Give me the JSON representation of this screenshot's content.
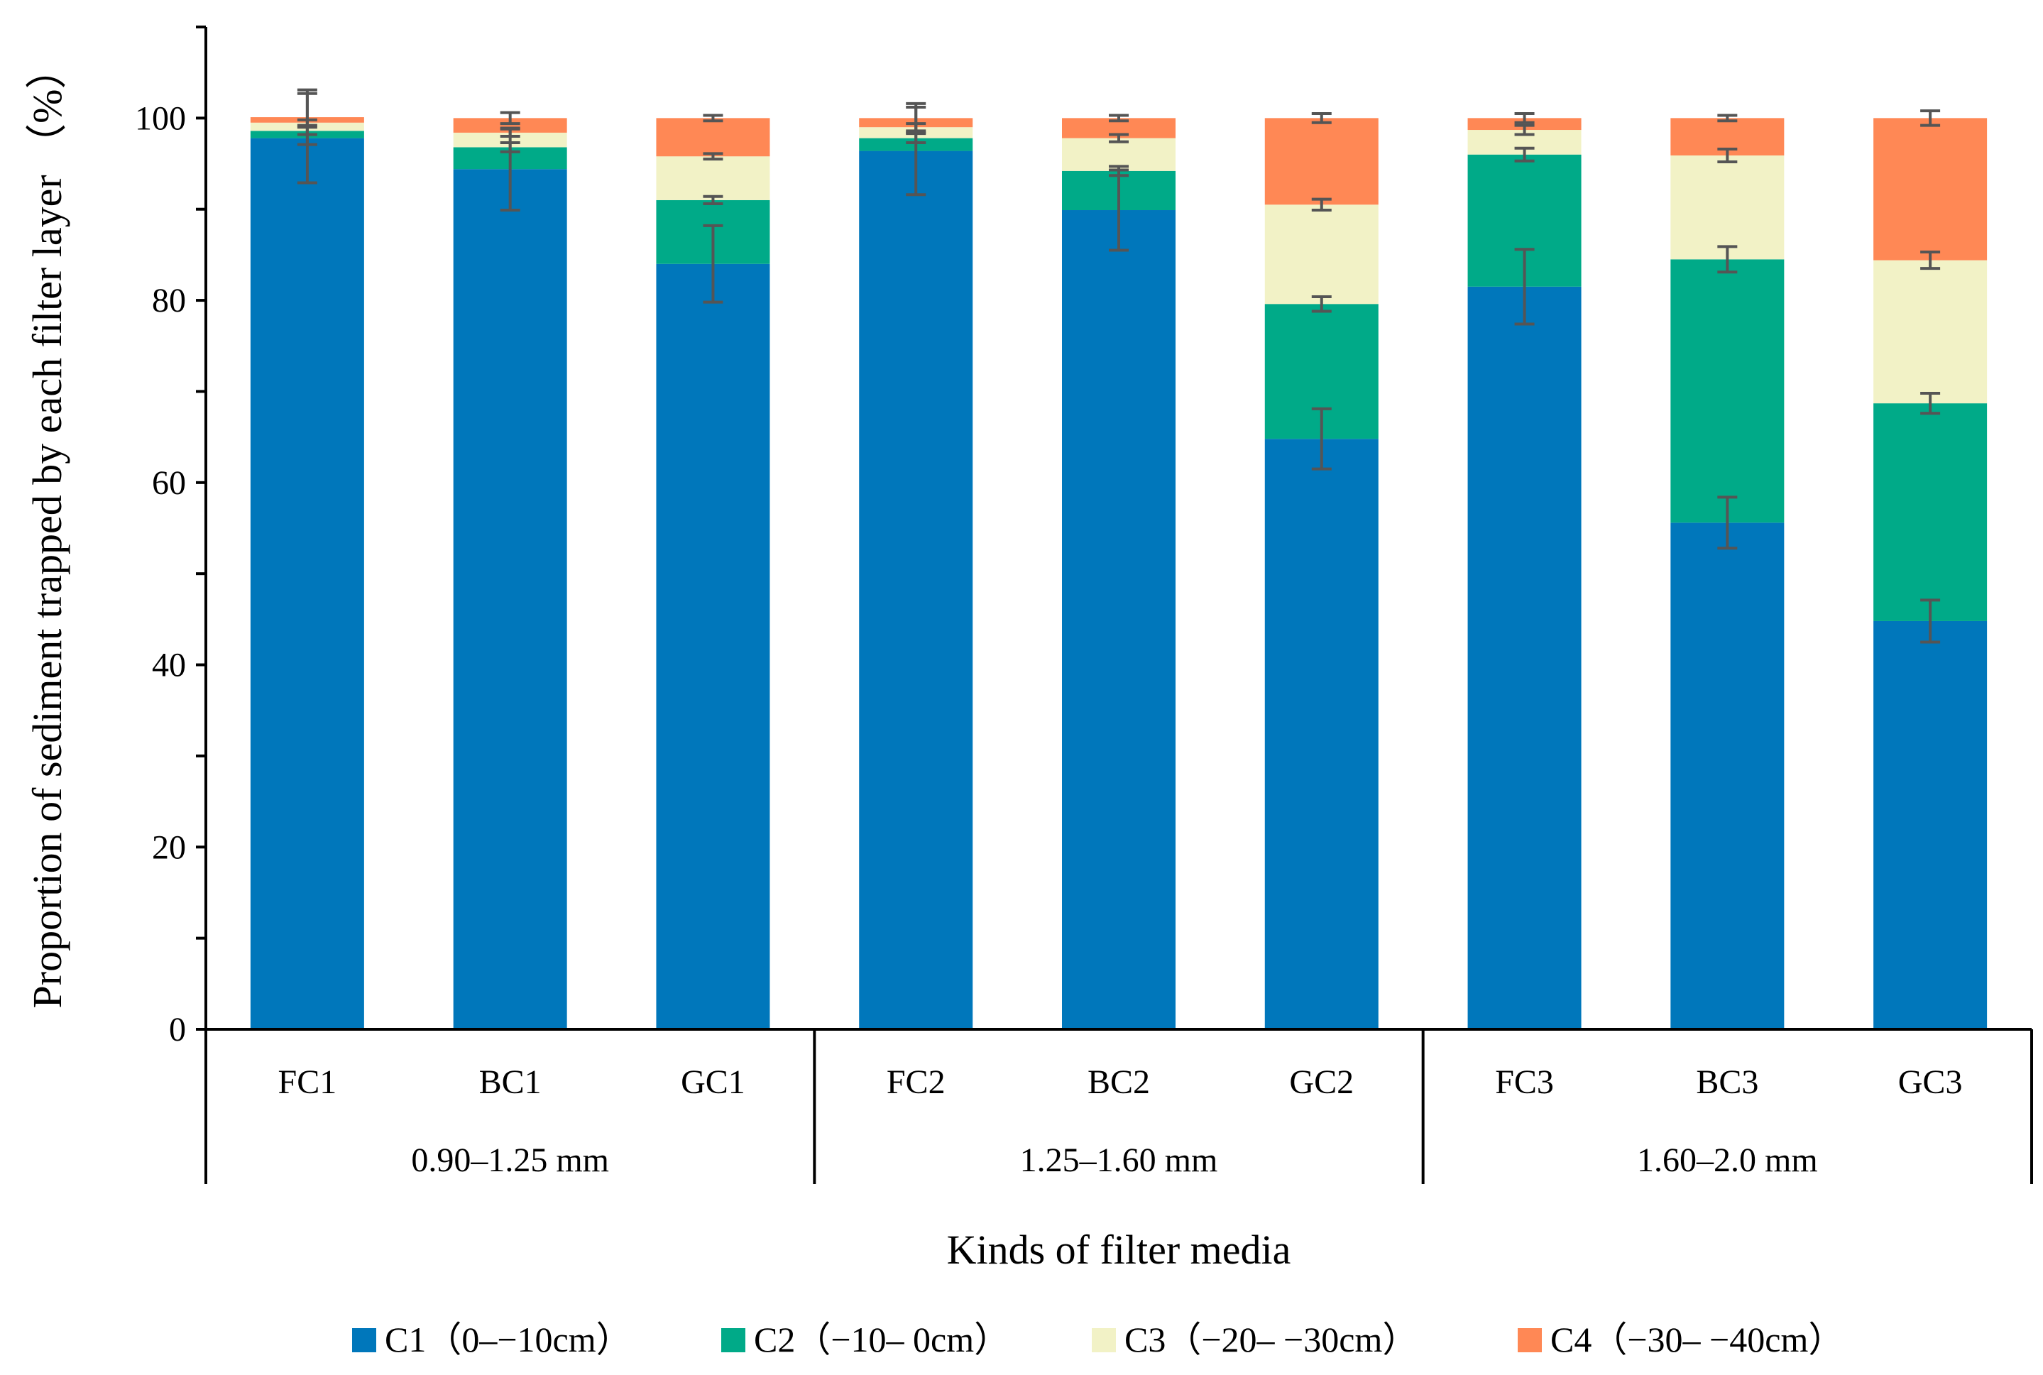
{
  "chart_data": {
    "type": "bar",
    "stacked": true,
    "xlabel": "Kinds of filter media",
    "ylabel": "Proportion of sediment trapped by each filter layer （%）",
    "ylim": [
      0,
      110
    ],
    "yticks": [
      0,
      20,
      40,
      60,
      80,
      100
    ],
    "categories": [
      "FC1",
      "BC1",
      "GC1",
      "FC2",
      "BC2",
      "GC2",
      "FC3",
      "BC3",
      "GC3"
    ],
    "groups": [
      {
        "label": "0.90–1.25 mm",
        "categories": [
          "FC1",
          "BC1",
          "GC1"
        ]
      },
      {
        "label": "1.25–1.60 mm",
        "categories": [
          "FC2",
          "BC2",
          "GC2"
        ]
      },
      {
        "label": "1.60–2.0 mm",
        "categories": [
          "FC3",
          "BC3",
          "GC3"
        ]
      }
    ],
    "series": [
      {
        "name": "C1（0–−10cm）",
        "color": "#0077BB",
        "values": [
          97.8,
          94.4,
          84.0,
          96.4,
          89.9,
          64.8,
          81.5,
          55.6,
          44.8
        ],
        "errors": [
          4.9,
          4.5,
          4.2,
          4.8,
          4.4,
          3.3,
          4.1,
          2.8,
          2.3
        ]
      },
      {
        "name": "C2（−10– 0cm）",
        "color": "#00AA88",
        "values": [
          0.8,
          2.4,
          7.0,
          1.4,
          4.3,
          14.8,
          14.5,
          28.9,
          23.9
        ],
        "errors": [
          0.4,
          0.5,
          0.4,
          0.5,
          0.5,
          0.8,
          0.7,
          1.4,
          1.1
        ]
      },
      {
        "name": "C3（−20– −30cm）",
        "color": "#F2F2C6",
        "values": [
          0.9,
          1.6,
          4.8,
          1.2,
          3.6,
          10.9,
          2.7,
          11.4,
          15.7
        ],
        "errors": [
          0.3,
          0.4,
          0.3,
          0.4,
          0.4,
          0.6,
          0.5,
          0.7,
          0.9
        ]
      },
      {
        "name": "C4（−30– −40cm）",
        "color": "#FF8855",
        "values": [
          0.6,
          1.6,
          4.2,
          1.0,
          2.2,
          9.5,
          1.3,
          4.1,
          15.6
        ],
        "errors": [
          3.0,
          0.6,
          0.3,
          1.6,
          0.3,
          0.5,
          0.5,
          0.3,
          0.8
        ]
      }
    ],
    "grid": false,
    "legend_position": "bottom"
  }
}
